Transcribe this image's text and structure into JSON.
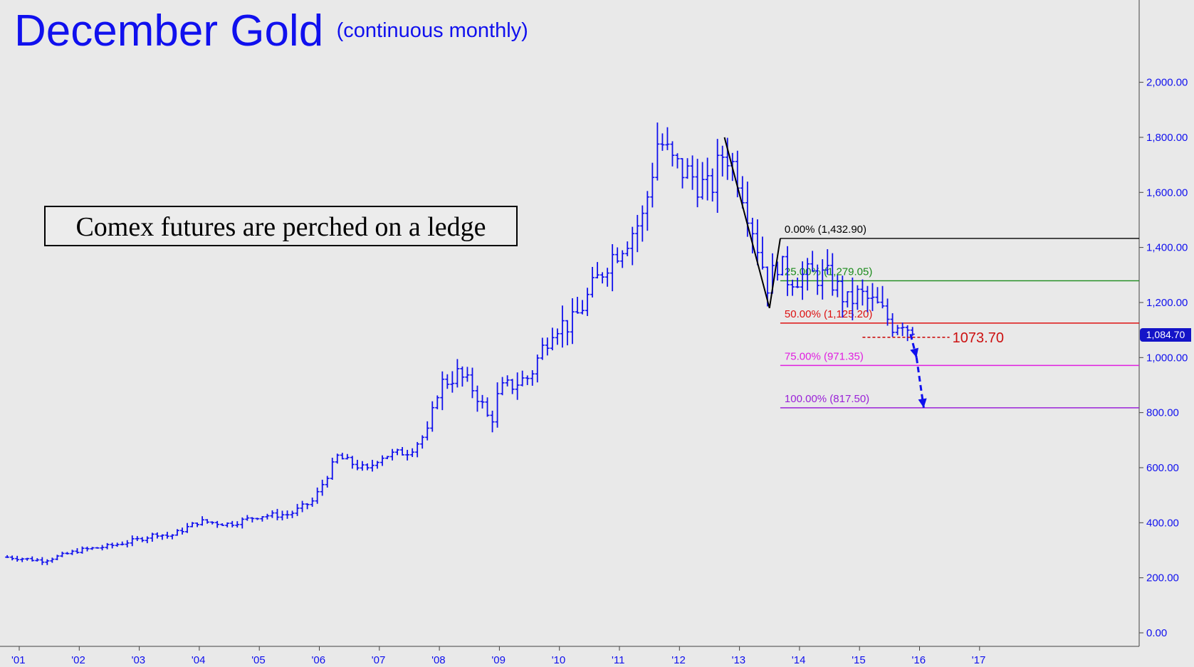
{
  "title": "December Gold",
  "subtitle": "(continuous monthly)",
  "annotation": "Comex futures are perched on a ledge",
  "colors": {
    "bars": "#1010ee",
    "axis_text": "#1010ee",
    "background": "#e9e9e9",
    "target": "#cc1010"
  },
  "chart_data": {
    "type": "ohlc",
    "ylim": [
      -50,
      2300
    ],
    "y_ticks": [
      {
        "value": 0,
        "label": "0.00"
      },
      {
        "value": 200,
        "label": "200.00"
      },
      {
        "value": 400,
        "label": "400.00"
      },
      {
        "value": 600,
        "label": "600.00"
      },
      {
        "value": 800,
        "label": "800.00"
      },
      {
        "value": 1000,
        "label": "1,000.00"
      },
      {
        "value": 1200,
        "label": "1,200.00"
      },
      {
        "value": 1400,
        "label": "1,400.00"
      },
      {
        "value": 1600,
        "label": "1,600.00"
      },
      {
        "value": 1800,
        "label": "1,800.00"
      },
      {
        "value": 2000,
        "label": "2,000.00"
      }
    ],
    "x_ticks": [
      "'01",
      "'02",
      "'03",
      "'04",
      "'05",
      "'06",
      "'07",
      "'08",
      "'09",
      "'10",
      "'11",
      "'12",
      "'13",
      "'14",
      "'15",
      "'16",
      "'17"
    ],
    "x_tick_years": [
      2001,
      2002,
      2003,
      2004,
      2005,
      2006,
      2007,
      2008,
      2009,
      2010,
      2011,
      2012,
      2013,
      2014,
      2015,
      2016,
      2017
    ],
    "last_price": {
      "value": 1084.7,
      "label": "1,084.70"
    },
    "anchors": [
      [
        2000.8,
        275
      ],
      [
        2001.4,
        262
      ],
      [
        2002.0,
        300
      ],
      [
        2002.5,
        315
      ],
      [
        2003.0,
        340
      ],
      [
        2003.3,
        360
      ],
      [
        2003.5,
        350
      ],
      [
        2004.0,
        405
      ],
      [
        2004.5,
        395
      ],
      [
        2005.0,
        425
      ],
      [
        2005.5,
        430
      ],
      [
        2005.9,
        480
      ],
      [
        2006.3,
        640
      ],
      [
        2006.5,
        620
      ],
      [
        2006.8,
        590
      ],
      [
        2007.0,
        640
      ],
      [
        2007.5,
        660
      ],
      [
        2007.8,
        730
      ],
      [
        2008.0,
        900
      ],
      [
        2008.3,
        940
      ],
      [
        2008.6,
        880
      ],
      [
        2008.85,
        760
      ],
      [
        2009.0,
        880
      ],
      [
        2009.5,
        930
      ],
      [
        2009.9,
        1120
      ],
      [
        2010.2,
        1120
      ],
      [
        2010.5,
        1230
      ],
      [
        2010.8,
        1350
      ],
      [
        2011.0,
        1400
      ],
      [
        2011.4,
        1510
      ],
      [
        2011.65,
        1800
      ],
      [
        2011.9,
        1700
      ],
      [
        2012.2,
        1660
      ],
      [
        2012.5,
        1600
      ],
      [
        2012.75,
        1760
      ],
      [
        2013.0,
        1650
      ],
      [
        2013.25,
        1450
      ],
      [
        2013.5,
        1240
      ],
      [
        2013.6,
        1360
      ],
      [
        2013.8,
        1290
      ],
      [
        2014.2,
        1300
      ],
      [
        2014.5,
        1290
      ],
      [
        2014.8,
        1200
      ],
      [
        2015.0,
        1230
      ],
      [
        2015.3,
        1185
      ],
      [
        2015.55,
        1120
      ],
      [
        2015.75,
        1140
      ],
      [
        2015.85,
        1085
      ]
    ],
    "swing": {
      "high": {
        "x": 2012.75,
        "y": 1800
      },
      "low": {
        "x": 2013.5,
        "y": 1180
      },
      "end": {
        "x": 2013.68,
        "y": 1432.9
      }
    },
    "retracements": [
      {
        "label": "0.00% (1,432.90)",
        "value": 1432.9,
        "color": "#000000"
      },
      {
        "label": "25.00% (1,279.05)",
        "value": 1279.05,
        "color": "#1a8a1a"
      },
      {
        "label": "50.00% (1,125.20)",
        "value": 1125.2,
        "color": "#dd1111"
      },
      {
        "label": "75.00% (971.35)",
        "value": 971.35,
        "color": "#e01ee0"
      },
      {
        "label": "100.00% (817.50)",
        "value": 817.5,
        "color": "#9a22d8"
      }
    ],
    "ledge": {
      "label": "1073.70",
      "value": 1073.7,
      "x_start": 2015.05
    },
    "projection": [
      [
        2015.85,
        1085
      ],
      [
        2015.95,
        1000
      ],
      [
        2016.07,
        817.5
      ]
    ]
  }
}
